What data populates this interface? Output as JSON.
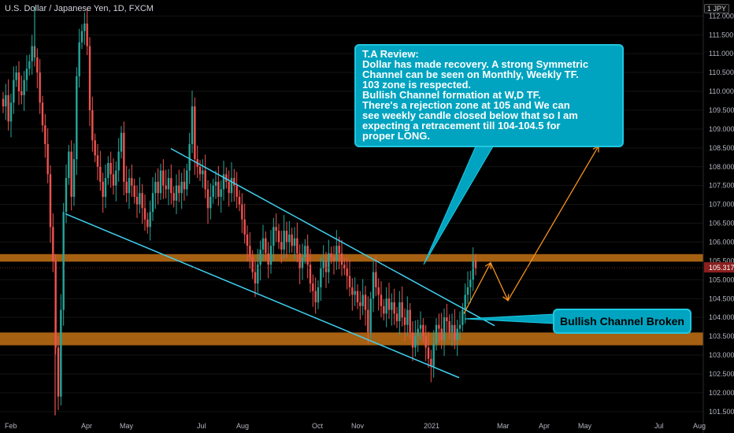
{
  "header": {
    "symbol": "U.S. Dollar / Japanese Yen, 1D, FXCM",
    "currency": "1  JPY"
  },
  "annotations": {
    "review_lines": [
      "T.A Review:",
      "Dollar has made recovery. A strong Symmetric",
      "Channel can be seen on Monthly, Weekly TF.",
      "103 zone is respected.",
      "Bullish Channel formation at W,D TF.",
      "There's a rejection zone at 105 and We can",
      "see weekly candle closed below that so I am",
      "expecting a retracement till 104-104.5 for",
      "proper LONG."
    ],
    "channel_broken": "Bullish Channel Broken"
  },
  "colors": {
    "background": "#000000",
    "up_candle": "#26a69a",
    "down_candle": "#ef5350",
    "channel_line": "#3fd0f0",
    "zone": "#b86a14",
    "projection": "#f7931e",
    "callout": "#00a4c0"
  },
  "chart_data": {
    "type": "candlestick",
    "instrument": "USDJPY",
    "timeframe": "1D",
    "y_ticks": [
      "112.000",
      "111.500",
      "111.000",
      "110.500",
      "110.000",
      "109.500",
      "109.000",
      "108.500",
      "108.000",
      "107.500",
      "107.000",
      "106.500",
      "106.000",
      "105.500",
      "105.000",
      "104.500",
      "104.000",
      "103.500",
      "103.000",
      "102.500",
      "102.000",
      "101.500"
    ],
    "x_ticks": [
      "Feb",
      "Apr",
      "May",
      "Jul",
      "Aug",
      "Oct",
      "Nov",
      "2021",
      "Mar",
      "Apr",
      "May",
      "Jul",
      "Aug"
    ],
    "ylim": [
      101.35,
      112.55
    ],
    "last_price": "105.317",
    "zones": [
      {
        "from": 105.48,
        "to": 105.68
      },
      {
        "from": 103.26,
        "to": 103.6
      }
    ],
    "close_series": [
      109.6,
      109.9,
      109.2,
      109.7,
      110.3,
      110.5,
      110.0,
      109.9,
      110.3,
      110.6,
      110.8,
      111.2,
      110.9,
      110.5,
      109.7,
      109.1,
      108.6,
      107.8,
      106.4,
      105.5,
      103.2,
      101.9,
      104.2,
      106.8,
      107.7,
      108.4,
      107.2,
      108.2,
      110.4,
      111.3,
      111.6,
      111.8,
      111.2,
      109.5,
      108.7,
      108.3,
      108.0,
      107.6,
      107.2,
      107.7,
      108.1,
      107.8,
      107.5,
      107.9,
      108.4,
      108.9,
      107.6,
      107.3,
      107.7,
      107.5,
      107.2,
      107.0,
      107.3,
      106.9,
      106.6,
      106.4,
      106.8,
      107.3,
      107.6,
      107.3,
      107.9,
      107.5,
      107.4,
      107.7,
      107.3,
      107.1,
      107.5,
      107.3,
      107.6,
      107.4,
      107.9,
      108.6,
      109.6,
      108.2,
      108.0,
      107.8,
      107.9,
      107.4,
      106.9,
      107.2,
      107.5,
      107.6,
      107.2,
      107.4,
      107.8,
      107.6,
      107.3,
      107.7,
      107.5,
      107.2,
      107.0,
      106.6,
      106.2,
      105.9,
      105.6,
      105.2,
      104.9,
      105.4,
      105.8,
      106.1,
      105.7,
      105.4,
      105.9,
      106.4,
      106.3,
      106.0,
      105.8,
      106.3,
      106.0,
      106.2,
      105.9,
      106.1,
      105.7,
      105.3,
      105.6,
      105.9,
      105.4,
      104.9,
      104.7,
      104.4,
      104.8,
      105.3,
      105.5,
      105.2,
      105.7,
      105.6,
      105.5,
      105.9,
      105.7,
      105.4,
      105.3,
      105.1,
      104.8,
      104.6,
      104.7,
      104.4,
      104.3,
      104.6,
      104.2,
      103.6,
      104.5,
      105.2,
      104.8,
      104.6,
      104.3,
      104.1,
      104.5,
      104.2,
      104.4,
      104.1,
      103.9,
      104.4,
      104.0,
      103.8,
      104.2,
      103.6,
      103.2,
      103.5,
      103.7,
      103.8,
      103.5,
      103.2,
      102.9,
      102.7,
      103.3,
      103.8,
      103.7,
      103.4,
      104.0,
      103.9,
      103.6,
      103.8,
      103.4,
      103.7,
      103.8,
      104.2,
      104.6,
      104.8,
      105.0,
      105.5,
      105.3
    ]
  }
}
